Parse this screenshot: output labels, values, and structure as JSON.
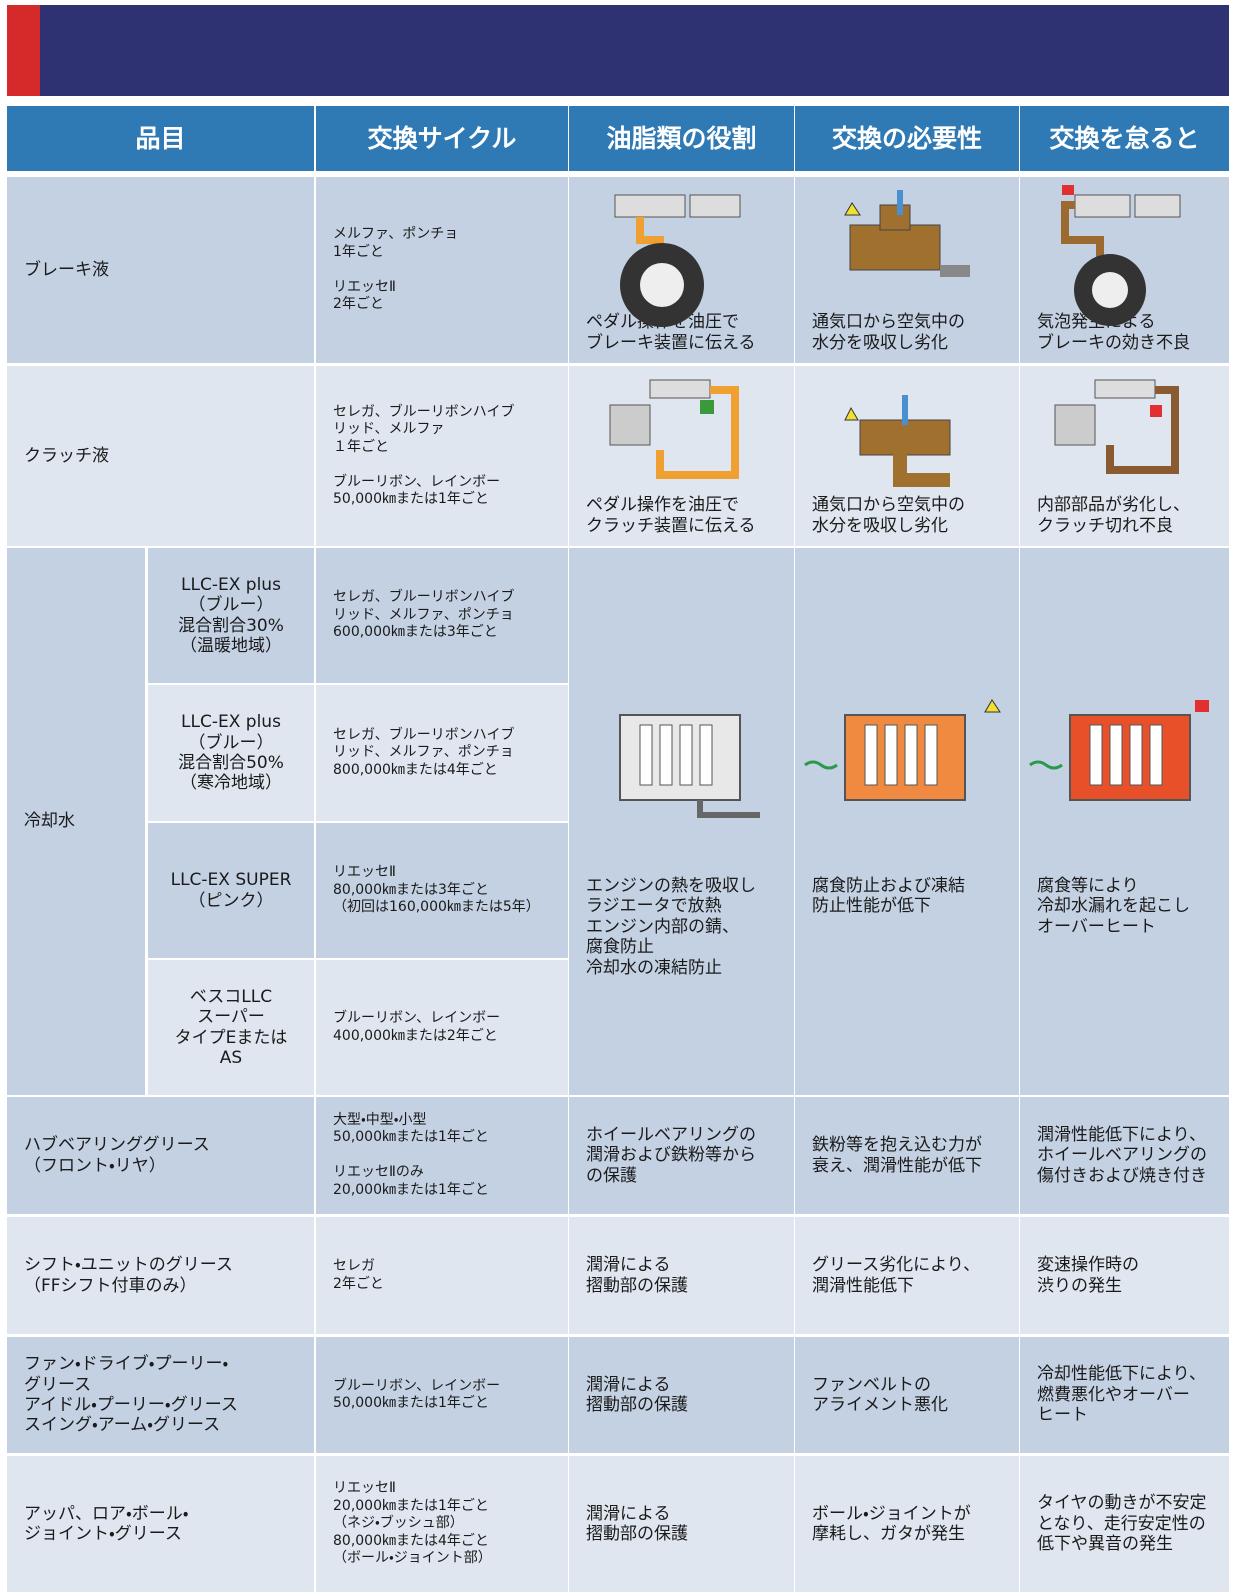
{
  "table": {
    "columns": [
      "品目",
      "交換サイクル",
      "油脂類の役割",
      "交換の必要性",
      "交換を怠ると"
    ],
    "rows": [
      {
        "item": "ブレーキ液",
        "cycle": "メルファ、ポンチョ\n1年ごと\n\nリエッセⅡ\n2年ごと",
        "role": "ペダル操作を油圧で\nブレーキ装置に伝える",
        "necessity": "通気口から空気中の\n水分を吸収し劣化",
        "consequence": "気泡発生による\nブレーキの効き不良"
      },
      {
        "item": "クラッチ液",
        "cycle": "セレガ、ブルーリボンハイブ\nリッド、メルファ\n１年ごと\n\nブルーリボン、レインボー\n50,000㎞または1年ごと",
        "role": "ペダル操作を油圧で\nクラッチ装置に伝える",
        "necessity": "通気口から空気中の\n水分を吸収し劣化",
        "consequence": "内部部品が劣化し、\nクラッチ切れ不良"
      },
      {
        "item": "冷却水",
        "subrows": [
          {
            "name": "LLC-EX plus\n（ブルー）\n混合割合30%\n（温暖地域）",
            "cycle": "セレガ、ブルーリボンハイブ\nリッド、メルファ、ポンチョ\n600,000㎞または3年ごと"
          },
          {
            "name": "LLC-EX plus\n（ブルー）\n混合割合50%\n（寒冷地域）",
            "cycle": "セレガ、ブルーリボンハイブ\nリッド、メルファ、ポンチョ\n800,000㎞または4年ごと"
          },
          {
            "name": "LLC-EX SUPER\n（ピンク）",
            "cycle": "リエッセⅡ\n80,000㎞または3年ごと\n（初回は160,000㎞または5年）"
          },
          {
            "name": "ベスコLLC\nスーパー\nタイプEまたは\nAS",
            "cycle": "ブルーリボン、レインボー\n400,000㎞または2年ごと"
          }
        ],
        "role": "エンジンの熱を吸収し\nラジエータで放熱\nエンジン内部の錆、\n腐食防止\n冷却水の凍結防止",
        "necessity": "腐食防止および凍結\n防止性能が低下",
        "consequence": "腐食等により\n冷却水漏れを起こし\nオーバーヒート"
      },
      {
        "item": "ハブベアリンググリース\n（フロント・リヤ）",
        "cycle": "大型・中型・小型\n50,000㎞または1年ごと\n\nリエッセⅡのみ\n20,000㎞または1年ごと",
        "role": "ホイールベアリングの\n潤滑および鉄粉等から\nの保護",
        "necessity": "鉄粉等を抱え込む力が\n衰え、潤滑性能が低下",
        "consequence": "潤滑性能低下により、\nホイールベアリングの\n傷付きおよび焼き付き"
      },
      {
        "item": "シフト・ユニットのグリース\n（FFシフト付車のみ）",
        "cycle": "セレガ\n2年ごと",
        "role": "潤滑による\n摺動部の保護",
        "necessity": "グリース劣化により、\n潤滑性能低下",
        "consequence": "変速操作時の\n渋りの発生"
      },
      {
        "item": "ファン・ドライブ・プーリー・\nグリース\nアイドル・プーリー・グリース\nスイング・アーム・グリース",
        "cycle": "ブルーリボン、レインボー\n50,000㎞または1年ごと",
        "role": "潤滑による\n摺動部の保護",
        "necessity": "ファンベルトの\nアライメント悪化",
        "consequence": "冷却性能低下により、\n燃費悪化やオーバー\nヒート"
      },
      {
        "item": "アッパ、ロア・ボール・\nジョイント・グリース",
        "cycle": "リエッセⅡ\n20,000㎞または1年ごと\n（ネジ・ブッシュ部）\n80,000㎞または4年ごと\n（ボール・ジョイント部）",
        "role": "潤滑による\n摺動部の保護",
        "necessity": "ボール・ジョイントが\n摩耗し、ガタが発生",
        "consequence": "タイヤの動きが不安定\nとなり、走行安定性の\n低下や異音の発生"
      }
    ]
  }
}
